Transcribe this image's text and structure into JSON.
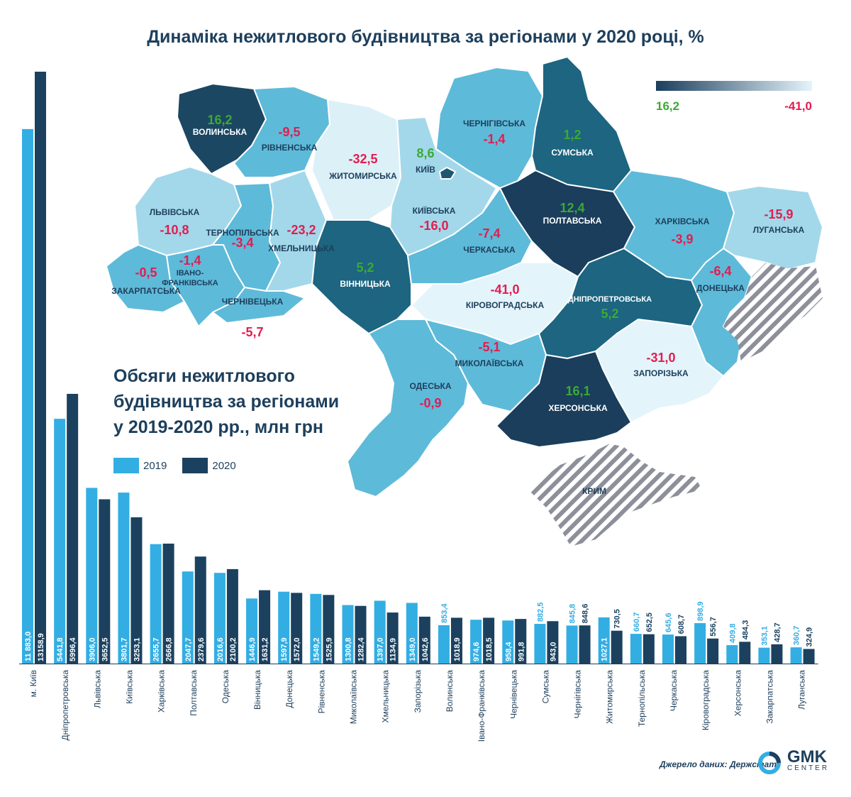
{
  "title": "Динаміка нежитлового будівництва за регіонами у 2020 році, %",
  "scale_legend": {
    "max_label": "16,2",
    "min_label": "-41,0"
  },
  "bar_title_lines": [
    "Обсяги нежитлового",
    "будівництва за регіонами",
    "у 2019-2020 рр., млн грн"
  ],
  "legend": [
    {
      "label": "2019",
      "color": "#33aee3"
    },
    {
      "label": "2020",
      "color": "#1b415f"
    }
  ],
  "source": "Джерело даних: Держстат",
  "logo": {
    "name": "GMK",
    "sub": "CENTER"
  },
  "colors": {
    "positive": "#3ba935",
    "negative": "#e31c4f",
    "title": "#1d3f5c"
  },
  "map_data": [
    {
      "region": "ВОЛИНСЬКА",
      "change": "16,2"
    },
    {
      "region": "РІВНЕНСЬКА",
      "change": "-9,5"
    },
    {
      "region": "ЖИТОМИРСЬКА",
      "change": "-32,5"
    },
    {
      "region": "КИЇВ",
      "change": "8,6"
    },
    {
      "region": "ЧЕРНІГІВСЬКА",
      "change": "-1,4"
    },
    {
      "region": "СУМСЬКА",
      "change": "1,2"
    },
    {
      "region": "ЛЬВІВСЬКА",
      "change": "-10,8"
    },
    {
      "region": "ТЕРНОПІЛЬСЬКА",
      "change": "-3,4"
    },
    {
      "region": "ХМЕЛЬНИЦЬКА",
      "change": "-23,2"
    },
    {
      "region": "КИЇВСЬКА",
      "change": "-16,0"
    },
    {
      "region": "ЧЕРКАСЬКА",
      "change": "-7,4"
    },
    {
      "region": "ПОЛТАВСЬКА",
      "change": "12,4"
    },
    {
      "region": "ХАРКІВСЬКА",
      "change": "-3,9"
    },
    {
      "region": "ЛУГАНСЬКА",
      "change": "-15,9"
    },
    {
      "region": "ЗАКАРПАТСЬКА",
      "change": "-0,5"
    },
    {
      "region": "ІВАНО-ФРАНКІВСЬКА",
      "change": "-1,4"
    },
    {
      "region": "ЧЕРНІВЕЦЬКА",
      "change": "-5,7"
    },
    {
      "region": "ВІННИЦЬКА",
      "change": "5,2"
    },
    {
      "region": "КІРОВОГРАДСЬКА",
      "change": "-41,0"
    },
    {
      "region": "ДНІПРОПЕТРОВСЬКА",
      "change": "5,2"
    },
    {
      "region": "ДОНЕЦЬКА",
      "change": "-6,4"
    },
    {
      "region": "ОДЕСЬКА",
      "change": "-0,9"
    },
    {
      "region": "МИКОЛАЇВСЬКА",
      "change": "-5,1"
    },
    {
      "region": "ЗАПОРІЗЬКА",
      "change": "-31,0"
    },
    {
      "region": "ХЕРСОНСЬКА",
      "change": "16,1"
    },
    {
      "region": "КРИМ",
      "change": ""
    }
  ],
  "chart_data": {
    "type": "bar",
    "title": "Обсяги нежитлового будівництва за регіонами у 2019-2020 рр., млн грн",
    "ylabel": "млн грн",
    "ylim": [
      0,
      13158.9
    ],
    "categories": [
      "м. Київ",
      "Дніпропетровська",
      "Львівська",
      "Київська",
      "Харківська",
      "Полтавська",
      "Одеська",
      "Вінницька",
      "Донецька",
      "Рівненська",
      "Миколаївська",
      "Хмельницька",
      "Запорізька",
      "Волинська",
      "Івано-Франківська",
      "Чернівецька",
      "Сумська",
      "Чернігівська",
      "Житомирська",
      "Тернопільська",
      "Черкаська",
      "Кіровоградська",
      "Херсонська",
      "Закарпатська",
      "Луганська"
    ],
    "series": [
      {
        "name": "2019",
        "values": [
          11883.0,
          5441.8,
          3906.0,
          3801.7,
          2655.7,
          2047.7,
          2016.6,
          1446.9,
          1597.9,
          1549.2,
          1300.8,
          1397.0,
          1349.0,
          853.4,
          974.6,
          958.4,
          882.5,
          845.8,
          1027.1,
          660.7,
          645.6,
          898.9,
          409.8,
          353.1,
          360.7
        ],
        "labels": [
          "11 883,0",
          "5441,8",
          "3906,0",
          "3801,7",
          "2655,7",
          "2047,7",
          "2016,6",
          "1446,9",
          "1597,9",
          "1549,2",
          "1300,8",
          "1397,0",
          "1349,0",
          "853,4",
          "974,6",
          "958,4",
          "882,5",
          "845,8",
          "1027,1",
          "660,7",
          "645,6",
          "898,9",
          "409,8",
          "353,1",
          "360,7"
        ]
      },
      {
        "name": "2020",
        "values": [
          13158.9,
          5996.4,
          3652.5,
          3253.1,
          2666.8,
          2379.6,
          2100.2,
          1631.2,
          1572.0,
          1525.9,
          1282.4,
          1134.9,
          1042.6,
          1018.9,
          1018.5,
          991.8,
          943.0,
          848.6,
          730.5,
          652.5,
          608.7,
          556.7,
          484.3,
          428.7,
          324.9
        ],
        "labels": [
          "13158,9",
          "5996,4",
          "3652,5",
          "3253,1",
          "2666,8",
          "2379,6",
          "2100,2",
          "1631,2",
          "1572,0",
          "1525,9",
          "1282,4",
          "1134,9",
          "1042,6",
          "1018,9",
          "1018,5",
          "991,8",
          "943,0",
          "848,6",
          "730,5",
          "652,5",
          "608,7",
          "556,7",
          "484,3",
          "428,7",
          "324,9"
        ]
      }
    ]
  }
}
